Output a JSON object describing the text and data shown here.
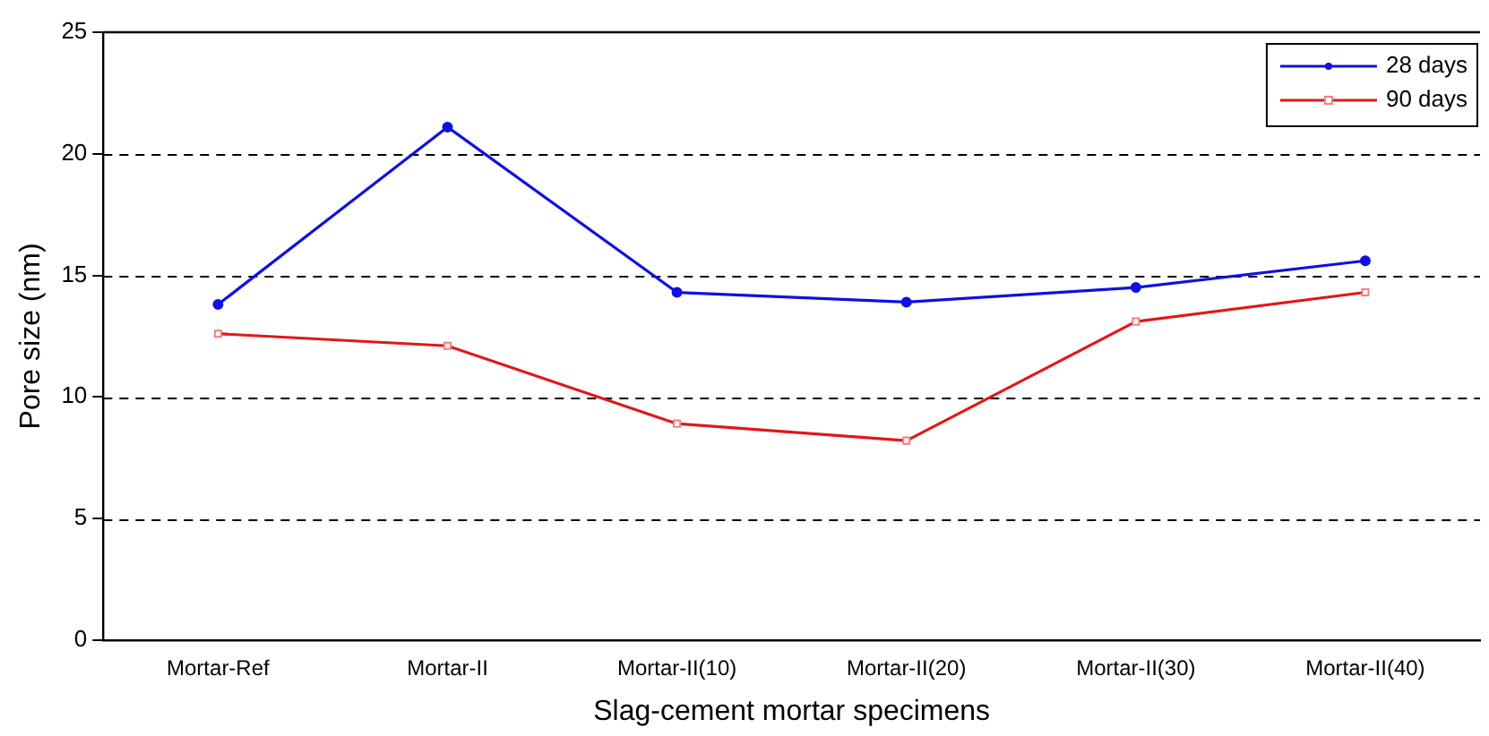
{
  "chart_data": {
    "type": "line",
    "xlabel": "Slag-cement mortar specimens",
    "ylabel": "Pore size (nm)",
    "categories": [
      "Mortar-Ref",
      "Mortar-II",
      "Mortar-II(10)",
      "Mortar-II(20)",
      "Mortar-II(30)",
      "Mortar-II(40)"
    ],
    "series": [
      {
        "name": "28 days",
        "color": "#1010e0",
        "marker": "circle",
        "values": [
          13.8,
          21.1,
          14.3,
          13.9,
          14.5,
          15.6
        ]
      },
      {
        "name": "90 days",
        "color": "#e01818",
        "marker": "square",
        "values": [
          12.6,
          12.1,
          8.9,
          8.2,
          13.1,
          14.3
        ]
      }
    ],
    "ylim": [
      0,
      25
    ],
    "yticks": [
      0,
      5,
      10,
      15,
      20,
      25
    ],
    "grid": "y",
    "legend": "top right",
    "line_style": "solid"
  }
}
